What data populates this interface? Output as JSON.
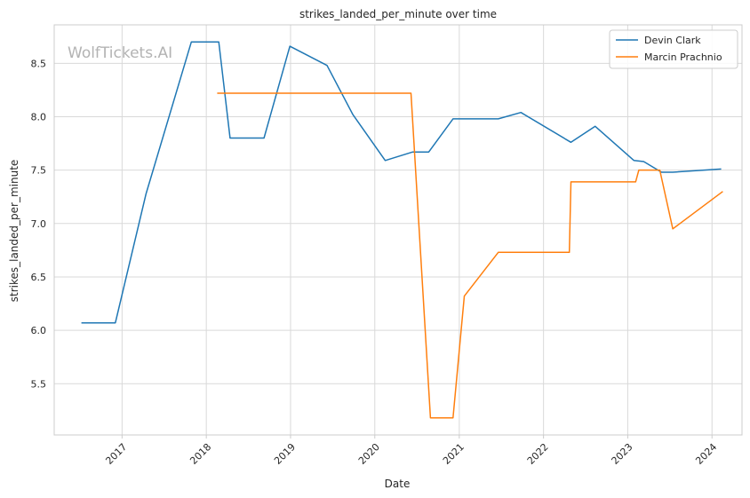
{
  "chart_data": {
    "type": "line",
    "title": "strikes_landed_per_minute over time",
    "xlabel": "Date",
    "ylabel": "strikes_landed_per_minute",
    "watermark": "WolfTickets.AI",
    "x_ticks": [
      "2017",
      "2018",
      "2019",
      "2020",
      "2021",
      "2022",
      "2023",
      "2024"
    ],
    "y_ticks": [
      "5.5",
      "6.0",
      "6.5",
      "7.0",
      "7.5",
      "8.0",
      "8.5"
    ],
    "xlim": [
      "2016-03-13",
      "2024-05-10"
    ],
    "ylim": [
      5.02,
      8.86
    ],
    "grid": true,
    "legend_position": "top-right",
    "series": [
      {
        "name": "Devin Clark",
        "color": "#1f77b4",
        "points": [
          [
            "2016-07-09",
            6.07
          ],
          [
            "2016-12-03",
            6.07
          ],
          [
            "2017-04-15",
            7.28
          ],
          [
            "2017-10-28",
            8.7
          ],
          [
            "2018-02-24",
            8.7
          ],
          [
            "2018-04-14",
            7.8
          ],
          [
            "2018-09-08",
            7.8
          ],
          [
            "2018-12-29",
            8.66
          ],
          [
            "2019-06-08",
            8.48
          ],
          [
            "2019-09-28",
            8.02
          ],
          [
            "2020-02-15",
            7.59
          ],
          [
            "2020-06-13",
            7.67
          ],
          [
            "2020-08-22",
            7.67
          ],
          [
            "2020-12-05",
            7.98
          ],
          [
            "2021-06-19",
            7.98
          ],
          [
            "2021-09-25",
            8.04
          ],
          [
            "2022-04-30",
            7.76
          ],
          [
            "2022-08-13",
            7.91
          ],
          [
            "2023-01-28",
            7.59
          ],
          [
            "2023-03-11",
            7.58
          ],
          [
            "2023-05-27",
            7.48
          ],
          [
            "2023-07-15",
            7.48
          ],
          [
            "2024-02-10",
            7.51
          ]
        ]
      },
      {
        "name": "Marcin Prachnio",
        "color": "#ff7f0e",
        "points": [
          [
            "2018-02-17",
            8.22
          ],
          [
            "2020-06-06",
            8.22
          ],
          [
            "2020-08-29",
            5.18
          ],
          [
            "2020-12-05",
            5.18
          ],
          [
            "2021-01-23",
            6.32
          ],
          [
            "2021-06-19",
            6.73
          ],
          [
            "2022-04-23",
            6.73
          ],
          [
            "2022-04-30",
            7.39
          ],
          [
            "2023-02-04",
            7.39
          ],
          [
            "2023-02-18",
            7.5
          ],
          [
            "2023-05-20",
            7.5
          ],
          [
            "2023-07-15",
            6.95
          ],
          [
            "2024-02-17",
            7.3
          ]
        ]
      }
    ]
  }
}
